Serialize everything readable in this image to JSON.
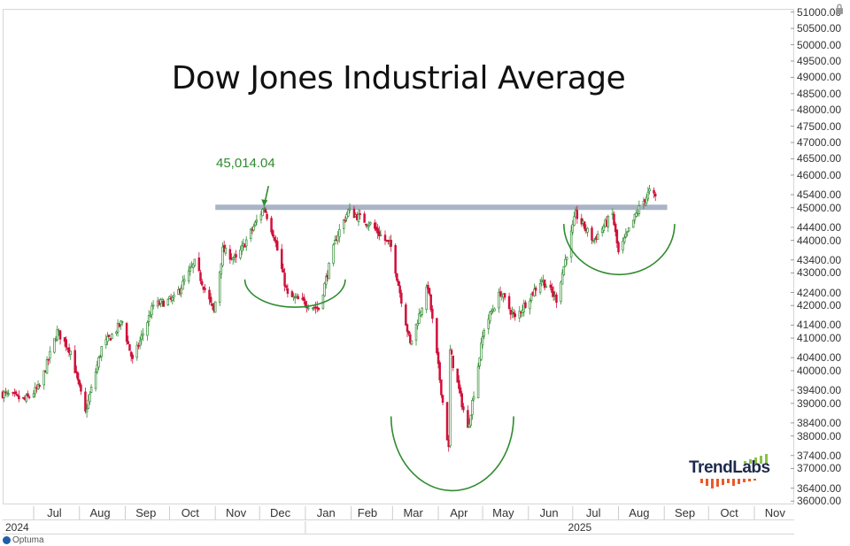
{
  "chart_data": {
    "type": "candlestick",
    "title": "Dow Jones Industrial Average",
    "annotations": [
      {
        "text": "45,014.04",
        "value": 45014.04,
        "date": "2024-12-04"
      }
    ],
    "resistance_level": 45014.04,
    "y_axis": {
      "side": "right",
      "ylim": [
        35900,
        51100
      ],
      "tick_labels": [
        "51000.00",
        "50500.00",
        "50000.00",
        "49500.00",
        "49000.00",
        "48500.00",
        "48000.00",
        "47500.00",
        "47000.00",
        "46500.00",
        "46000.00",
        "45400.00",
        "45000.00",
        "44400.00",
        "44000.00",
        "43400.00",
        "43000.00",
        "42400.00",
        "42000.00",
        "41400.00",
        "41000.00",
        "40400.00",
        "40000.00",
        "39400.00",
        "39000.00",
        "38400.00",
        "38000.00",
        "37400.00",
        "37000.00",
        "36400.00",
        "36000.00"
      ]
    },
    "x_axis": {
      "range": [
        "2024-06-10",
        "2025-11-28"
      ],
      "month_labels": [
        {
          "label": "Jul",
          "date": "2024-07-15"
        },
        {
          "label": "Aug",
          "date": "2024-08-15"
        },
        {
          "label": "Sep",
          "date": "2024-09-15"
        },
        {
          "label": "Oct",
          "date": "2024-10-15"
        },
        {
          "label": "Nov",
          "date": "2024-11-15"
        },
        {
          "label": "Dec",
          "date": "2024-12-15"
        },
        {
          "label": "Jan",
          "date": "2025-01-15"
        },
        {
          "label": "Feb",
          "date": "2025-02-12"
        },
        {
          "label": "Mar",
          "date": "2025-03-15"
        },
        {
          "label": "Apr",
          "date": "2025-04-15"
        },
        {
          "label": "May",
          "date": "2025-05-15"
        },
        {
          "label": "Jun",
          "date": "2025-06-15"
        },
        {
          "label": "Jul",
          "date": "2025-07-15"
        },
        {
          "label": "Aug",
          "date": "2025-08-15"
        },
        {
          "label": "Sep",
          "date": "2025-09-15"
        },
        {
          "label": "Oct",
          "date": "2025-10-15"
        },
        {
          "label": "Nov",
          "date": "2025-11-15"
        }
      ],
      "year_labels": [
        {
          "label": "2024",
          "date": "2024-06-10"
        },
        {
          "label": "2025",
          "date": "2025-06-26"
        }
      ]
    },
    "close_path": [
      {
        "date": "2024-06-10",
        "close": 39300
      },
      {
        "date": "2024-06-25",
        "close": 39100
      },
      {
        "date": "2024-07-05",
        "close": 39500
      },
      {
        "date": "2024-07-17",
        "close": 41200
      },
      {
        "date": "2024-07-26",
        "close": 40600
      },
      {
        "date": "2024-08-05",
        "close": 38700
      },
      {
        "date": "2024-08-16",
        "close": 40700
      },
      {
        "date": "2024-08-30",
        "close": 41500
      },
      {
        "date": "2024-09-06",
        "close": 40300
      },
      {
        "date": "2024-09-20",
        "close": 42000
      },
      {
        "date": "2024-10-04",
        "close": 42200
      },
      {
        "date": "2024-10-18",
        "close": 43300
      },
      {
        "date": "2024-10-31",
        "close": 41800
      },
      {
        "date": "2024-11-06",
        "close": 43700
      },
      {
        "date": "2024-11-15",
        "close": 43400
      },
      {
        "date": "2024-12-04",
        "close": 45014
      },
      {
        "date": "2024-12-11",
        "close": 44100
      },
      {
        "date": "2024-12-20",
        "close": 42300
      },
      {
        "date": "2025-01-10",
        "close": 41900
      },
      {
        "date": "2025-01-22",
        "close": 44100
      },
      {
        "date": "2025-01-30",
        "close": 44900
      },
      {
        "date": "2025-02-14",
        "close": 44500
      },
      {
        "date": "2025-02-28",
        "close": 43800
      },
      {
        "date": "2025-03-13",
        "close": 40800
      },
      {
        "date": "2025-03-25",
        "close": 42600
      },
      {
        "date": "2025-04-08",
        "close": 37600
      },
      {
        "date": "2025-04-09",
        "close": 40600
      },
      {
        "date": "2025-04-21",
        "close": 38200
      },
      {
        "date": "2025-05-02",
        "close": 41300
      },
      {
        "date": "2025-05-13",
        "close": 42400
      },
      {
        "date": "2025-05-23",
        "close": 41600
      },
      {
        "date": "2025-06-10",
        "close": 42800
      },
      {
        "date": "2025-06-20",
        "close": 42200
      },
      {
        "date": "2025-07-03",
        "close": 44800
      },
      {
        "date": "2025-07-15",
        "close": 44000
      },
      {
        "date": "2025-07-28",
        "close": 44800
      },
      {
        "date": "2025-08-01",
        "close": 43600
      },
      {
        "date": "2025-08-14",
        "close": 44900
      },
      {
        "date": "2025-08-22",
        "close": 45500
      },
      {
        "date": "2025-08-26",
        "close": 45300
      }
    ],
    "arcs": [
      {
        "start": "2024-11-21",
        "end": "2025-01-28",
        "level": 42800,
        "low": 41950
      },
      {
        "start": "2025-02-28",
        "end": "2025-05-22",
        "level": 38600,
        "low": 36320
      },
      {
        "start": "2025-06-25",
        "end": "2025-09-08",
        "level": 44500,
        "low": 42950
      }
    ],
    "grid": false,
    "legend": "none",
    "colors": {
      "up": "#2e8b2e",
      "down": "#d0103a",
      "resistance": "#aab4c6",
      "arc": "#2e8b2e"
    }
  },
  "brand": {
    "name": "Optuma"
  },
  "logo": {
    "text": "TrendLabs"
  }
}
